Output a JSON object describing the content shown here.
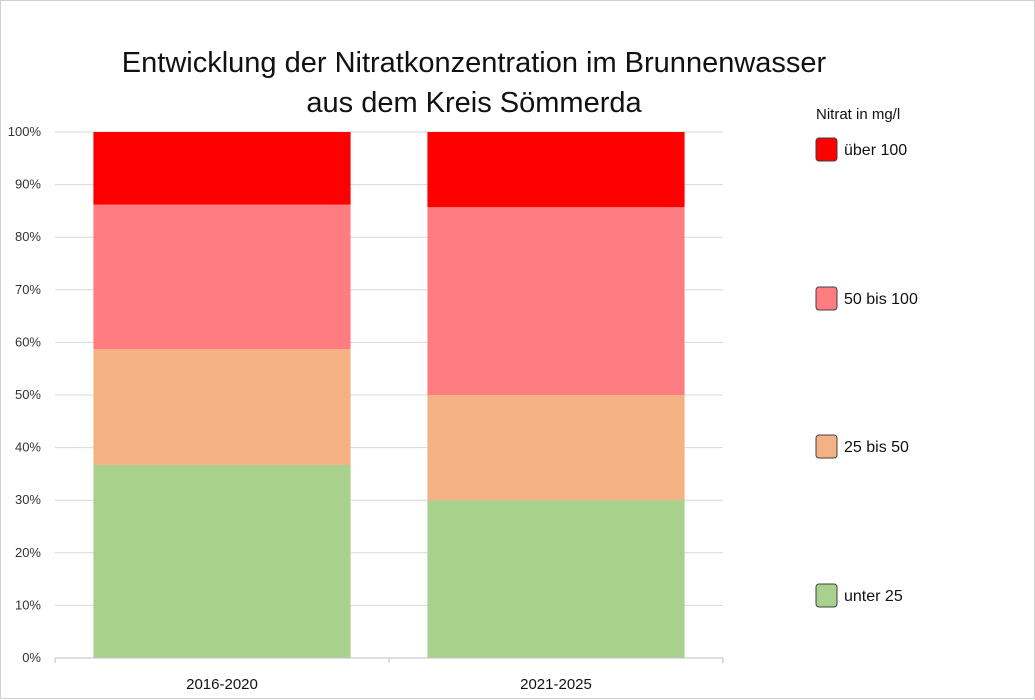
{
  "chart_data": {
    "type": "bar",
    "stacked": true,
    "percent_stacked": true,
    "title_lines": [
      "Entwicklung der Nitratkonzentration im Brunnenwasser",
      "aus dem Kreis Sömmerda"
    ],
    "categories": [
      "2016-2020",
      "2021-2025"
    ],
    "series": [
      {
        "name": "unter 25",
        "color": "#a9d18e",
        "values": [
          36.7,
          30.0
        ]
      },
      {
        "name": "25 bis 50",
        "color": "#f4b183",
        "values": [
          22.0,
          20.0
        ]
      },
      {
        "name": "50 bis 100",
        "color": "#ff7c80",
        "values": [
          27.5,
          35.7
        ]
      },
      {
        "name": "über 100",
        "color": "#ff0000",
        "values": [
          13.8,
          14.3
        ]
      }
    ],
    "y_ticks": [
      "0%",
      "10%",
      "20%",
      "30%",
      "40%",
      "50%",
      "60%",
      "70%",
      "80%",
      "90%",
      "100%"
    ],
    "ylim": [
      0,
      100
    ],
    "grid": true,
    "legend": {
      "title": "Nitrat in mg/l",
      "placement": "right",
      "order": [
        "über 100",
        "50 bis 100",
        "25 bis 50",
        "unter 25"
      ]
    }
  }
}
